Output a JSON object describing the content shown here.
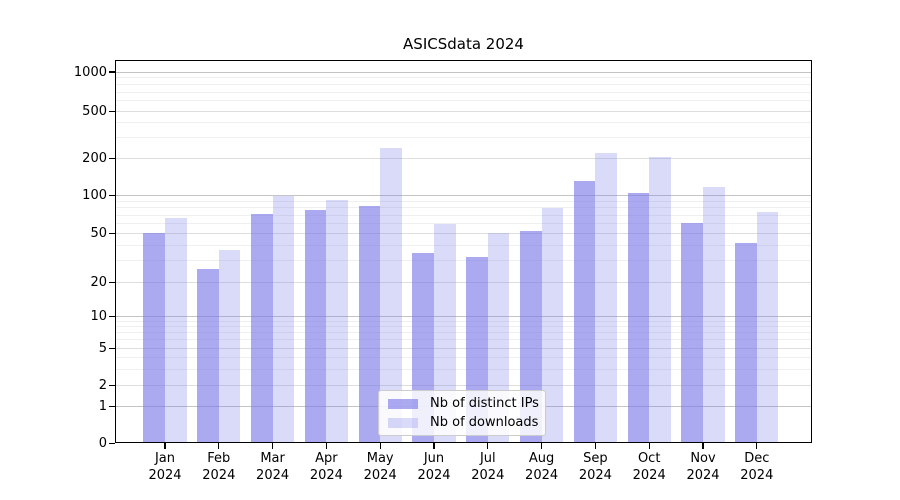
{
  "title": "ASICSdata 2024",
  "legend": {
    "items": [
      {
        "key": "ips",
        "label": "Nb of distinct IPs"
      },
      {
        "key": "downloads",
        "label": "Nb of downloads"
      }
    ]
  },
  "colors": {
    "bar_base": "#7776e8",
    "ips_alpha": 0.62,
    "downloads_alpha": 0.27,
    "ips_swatch": "#abaaf2",
    "downloads_swatch": "#dadaf8",
    "grid_power10": "#c4c4c4",
    "grid_labeled": "#dedede",
    "grid_minor": "#efefef",
    "spine": "#000000"
  },
  "chart_data": {
    "type": "bar",
    "title": "ASICSdata 2024",
    "categories": [
      "Jan 2024",
      "Feb 2024",
      "Mar 2024",
      "Apr 2024",
      "May 2024",
      "Jun 2024",
      "Jul 2024",
      "Aug 2024",
      "Sep 2024",
      "Oct 2024",
      "Nov 2024",
      "Dec 2024"
    ],
    "month_labels": [
      "Jan",
      "Feb",
      "Mar",
      "Apr",
      "May",
      "Jun",
      "Jul",
      "Aug",
      "Sep",
      "Oct",
      "Nov",
      "Dec"
    ],
    "year_label": "2024",
    "series": [
      {
        "name": "Nb of distinct IPs",
        "values": [
          50,
          26,
          72,
          77,
          83,
          35,
          32,
          52,
          132,
          105,
          60,
          42
        ]
      },
      {
        "name": "Nb of downloads",
        "values": [
          66,
          37,
          100,
          92,
          248,
          59,
          50,
          80,
          225,
          207,
          117,
          74
        ]
      }
    ],
    "yscale": "symlog",
    "yticks": [
      0,
      1,
      2,
      5,
      10,
      20,
      50,
      100,
      200,
      500,
      1000
    ],
    "minor_gridlines": [
      3,
      4,
      6,
      7,
      8,
      9,
      30,
      40,
      60,
      70,
      80,
      90,
      300,
      400,
      600,
      700,
      800,
      900
    ],
    "ylim": [
      0,
      1200
    ],
    "grid": true,
    "legend_position": "lower center"
  }
}
